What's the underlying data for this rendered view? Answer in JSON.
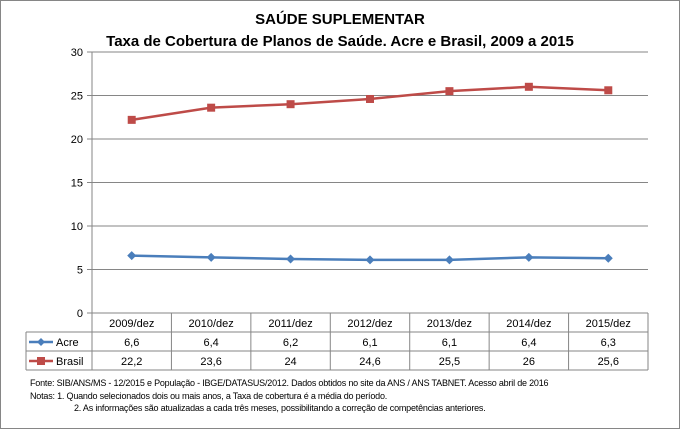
{
  "chart_data": {
    "type": "line",
    "title": "SAÚDE SUPLEMENTAR",
    "subtitle": "Taxa de Cobertura de Planos de Saúde. Acre e Brasil, 2009 a 2015",
    "categories": [
      "2009/dez",
      "2010/dez",
      "2011/dez",
      "2012/dez",
      "2013/dez",
      "2014/dez",
      "2015/dez"
    ],
    "series": [
      {
        "name": "Acre",
        "values": [
          6.6,
          6.4,
          6.2,
          6.1,
          6.1,
          6.4,
          6.3
        ],
        "labels": [
          "6,6",
          "6,4",
          "6,2",
          "6,1",
          "6,1",
          "6,4",
          "6,3"
        ],
        "color": "#4a7ebb",
        "marker": "diamond"
      },
      {
        "name": "Brasil",
        "values": [
          22.2,
          23.6,
          24,
          24.6,
          25.5,
          26,
          25.6
        ],
        "labels": [
          "22,2",
          "23,6",
          "24",
          "24,6",
          "25,5",
          "26",
          "25,6"
        ],
        "color": "#be4b48",
        "marker": "square"
      }
    ],
    "ylim": [
      0,
      30
    ],
    "yticks": [
      0,
      5,
      10,
      15,
      20,
      25,
      30
    ],
    "grid": true,
    "legend": "data-table"
  },
  "notes": {
    "source": "Fonte: SIB/ANS/MS - 12/2015 e População - IBGE/DATASUS/2012. Dados obtidos no site da ANS / ANS TABNET. Acesso abril de 2016",
    "note1": "Notas: 1. Quando selecionados dois ou mais anos, a Taxa de cobertura é a média do período.",
    "note2": "2. As informações são atualizadas a cada três meses, possibilitando a correção de competências anteriores."
  }
}
